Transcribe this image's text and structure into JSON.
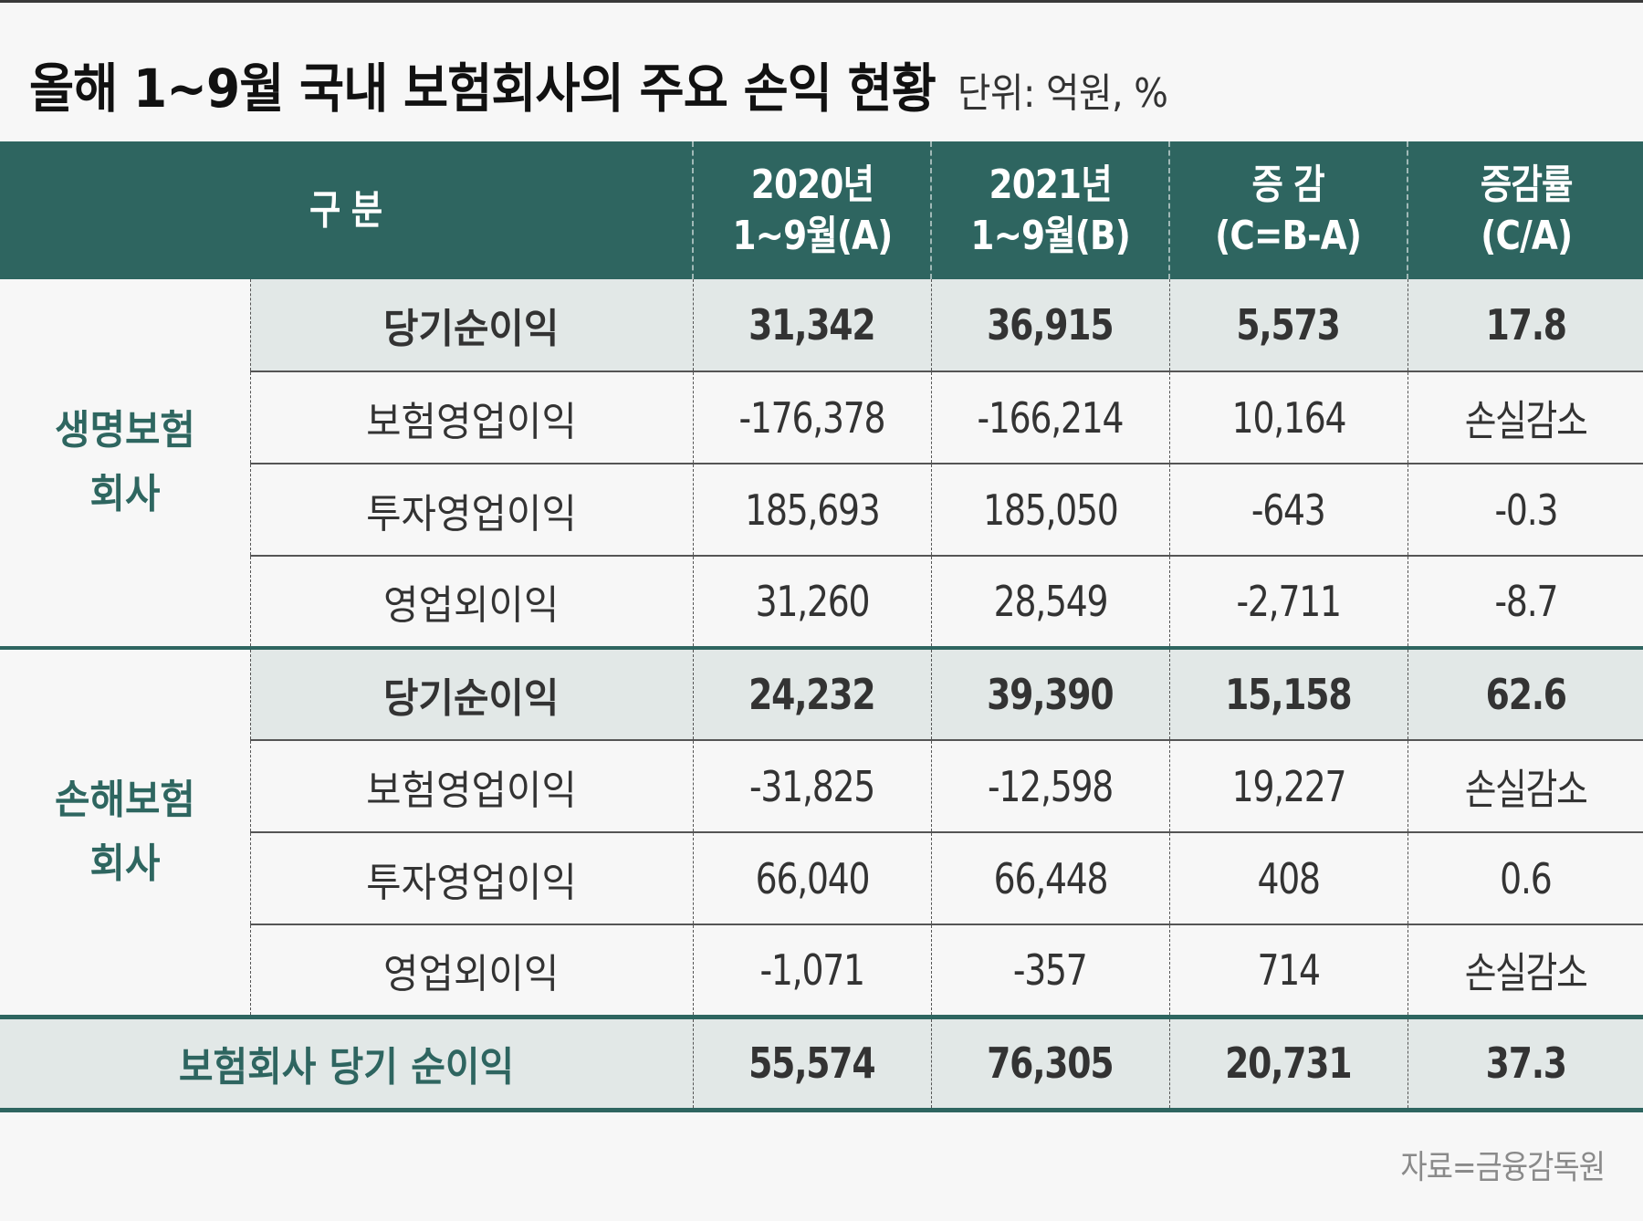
{
  "title": "올해 1~9월 국내 보험회사의 주요 손익 현황",
  "unit": "단위: 억원, %",
  "source": "자료=금융감독원",
  "colors": {
    "header_bg": "#2e6560",
    "accent": "#2e6660",
    "shade": "#e2e8e7",
    "background": "#f7f7f7"
  },
  "header": {
    "category": "구 분",
    "col_a_line1": "2020년",
    "col_a_line2": "1~9월(A)",
    "col_b_line1": "2021년",
    "col_b_line2": "1~9월(B)",
    "col_c_line1": "증 감",
    "col_c_line2": "(C=B-A)",
    "col_d_line1": "증감률",
    "col_d_line2": "(C/A)"
  },
  "life": {
    "group_line1": "생명보험",
    "group_line2": "회사",
    "rows": [
      {
        "item": "당기순이익",
        "a": "31,342",
        "b": "36,915",
        "c": "5,573",
        "d": "17.8"
      },
      {
        "item": "보험영업이익",
        "a": "-176,378",
        "b": "-166,214",
        "c": "10,164",
        "d": "손실감소"
      },
      {
        "item": "투자영업이익",
        "a": "185,693",
        "b": "185,050",
        "c": "-643",
        "d": "-0.3"
      },
      {
        "item": "영업외이익",
        "a": "31,260",
        "b": "28,549",
        "c": "-2,711",
        "d": "-8.7"
      }
    ]
  },
  "nonlife": {
    "group_line1": "손해보험",
    "group_line2": "회사",
    "rows": [
      {
        "item": "당기순이익",
        "a": "24,232",
        "b": "39,390",
        "c": "15,158",
        "d": "62.6"
      },
      {
        "item": "보험영업이익",
        "a": "-31,825",
        "b": "-12,598",
        "c": "19,227",
        "d": "손실감소"
      },
      {
        "item": "투자영업이익",
        "a": "66,040",
        "b": "66,448",
        "c": "408",
        "d": "0.6"
      },
      {
        "item": "영업외이익",
        "a": "-1,071",
        "b": "-357",
        "c": "714",
        "d": "손실감소"
      }
    ]
  },
  "total": {
    "label": "보험회사 당기 순이익",
    "a": "55,574",
    "b": "76,305",
    "c": "20,731",
    "d": "37.3"
  },
  "chart_data": {
    "type": "table",
    "title": "올해 1~9월 국내 보험회사의 주요 손익 현황",
    "subtitle": "단위: 억원, %",
    "columns": [
      "구분",
      "항목",
      "2020년 1~9월(A)",
      "2021년 1~9월(B)",
      "증감(C=B-A)",
      "증감률(C/A)"
    ],
    "rows": [
      [
        "생명보험회사",
        "당기순이익",
        31342,
        36915,
        5573,
        17.8
      ],
      [
        "생명보험회사",
        "보험영업이익",
        -176378,
        -166214,
        10164,
        "손실감소"
      ],
      [
        "생명보험회사",
        "투자영업이익",
        185693,
        185050,
        -643,
        -0.3
      ],
      [
        "생명보험회사",
        "영업외이익",
        31260,
        28549,
        -2711,
        -8.7
      ],
      [
        "손해보험회사",
        "당기순이익",
        24232,
        39390,
        15158,
        62.6
      ],
      [
        "손해보험회사",
        "보험영업이익",
        -31825,
        -12598,
        19227,
        "손실감소"
      ],
      [
        "손해보험회사",
        "투자영업이익",
        66040,
        66448,
        408,
        0.6
      ],
      [
        "손해보험회사",
        "영업외이익",
        -1071,
        -357,
        714,
        "손실감소"
      ],
      [
        "보험회사 당기 순이익",
        "",
        55574,
        76305,
        20731,
        37.3
      ]
    ],
    "source": "자료=금융감독원"
  }
}
